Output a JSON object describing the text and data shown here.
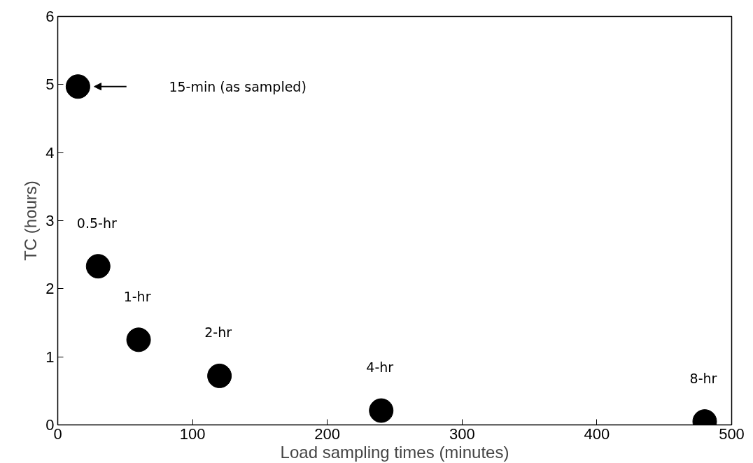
{
  "chart_data": {
    "type": "scatter",
    "xlabel": "Load sampling times (minutes)",
    "ylabel": "TC (hours)",
    "x": [
      15,
      30,
      60,
      120,
      240,
      480
    ],
    "series": [
      {
        "color": "#000000",
        "values": [
          4.97,
          2.33,
          1.25,
          0.72,
          0.21,
          0.05
        ]
      }
    ],
    "xlim": [
      0,
      500
    ],
    "xticks": [
      0,
      100,
      200,
      300,
      400,
      500
    ],
    "ylim": [
      0,
      6
    ],
    "yticks": [
      0,
      1,
      2,
      3,
      4,
      5,
      6
    ],
    "grid": false,
    "marker": "circle",
    "annotations": [
      "15-min (as sampled)",
      {
        "text": "0.5-hr",
        "x": 30,
        "y": 2.33
      },
      {
        "text": "1-hr",
        "x": 60,
        "y": 1.25
      },
      {
        "text": "2-hr",
        "x": 120,
        "y": 0.72
      },
      {
        "text": "4-hr",
        "x": 240,
        "y": 0.21
      },
      {
        "text": "8-hr",
        "x": 480,
        "y": 0.05
      }
    ]
  }
}
